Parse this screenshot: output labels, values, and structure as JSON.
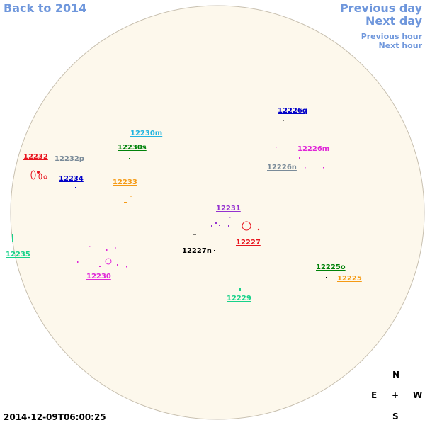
{
  "navigation": {
    "back": "Back to 2014",
    "previous_day": "Previous day",
    "next_day": "Next day",
    "previous_hour": "Previous hour",
    "next_hour": "Next hour"
  },
  "regions": [
    {
      "label": "12232",
      "color": "#e8141e"
    },
    {
      "label": "12232p",
      "color": "#7a8b99"
    },
    {
      "label": "12234",
      "color": "#0000c8"
    },
    {
      "label": "12230m",
      "color": "#20b4e0"
    },
    {
      "label": "12230s",
      "color": "#00820a"
    },
    {
      "label": "12233",
      "color": "#f59a14"
    },
    {
      "label": "12226q",
      "color": "#0000c8"
    },
    {
      "label": "12226m",
      "color": "#e028d8"
    },
    {
      "label": "12226n",
      "color": "#7a8b99"
    },
    {
      "label": "12231",
      "color": "#9432d0"
    },
    {
      "label": "12227",
      "color": "#e8141e"
    },
    {
      "label": "12227n",
      "color": "#000000"
    },
    {
      "label": "12235",
      "color": "#18d28a"
    },
    {
      "label": "12230",
      "color": "#e028d8"
    },
    {
      "label": "12225o",
      "color": "#00820a"
    },
    {
      "label": "12225",
      "color": "#f59a14"
    },
    {
      "label": "12229",
      "color": "#18d28a"
    }
  ],
  "compass": {
    "north": "N",
    "east": "E",
    "center": "+",
    "west": "W",
    "south": "S"
  },
  "timestamp": "2014-12-09T06:00:25"
}
